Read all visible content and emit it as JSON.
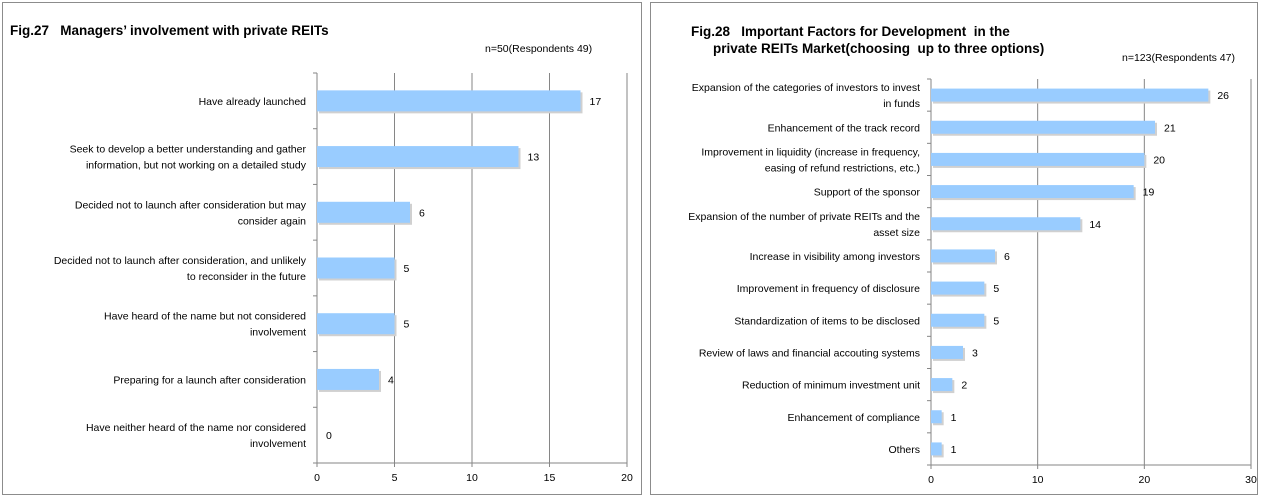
{
  "chart_data": [
    {
      "type": "bar",
      "orientation": "horizontal",
      "title": "Fig.27   Managers’ involvement with private REITs",
      "note": "n=50(Respondents 49)",
      "categories": [
        [
          "Have already launched"
        ],
        [
          "Seek to develop a better understanding and gather",
          "information, but not working on a detailed study"
        ],
        [
          "Decided not to launch after consideration but may",
          "consider again"
        ],
        [
          "Decided not to launch after consideration, and unlikely",
          "to reconsider in the future"
        ],
        [
          "Have heard of the name but not considered",
          "involvement"
        ],
        [
          "Preparing for a launch after consideration"
        ],
        [
          "Have neither heard of the name nor considered",
          "involvement"
        ]
      ],
      "values": [
        17,
        13,
        6,
        5,
        5,
        4,
        0
      ],
      "xlim": [
        0,
        20
      ],
      "xticks": [
        0,
        5,
        10,
        15,
        20
      ],
      "grid": true,
      "bar_color": "#99ccff"
    },
    {
      "type": "bar",
      "orientation": "horizontal",
      "title_lines": [
        "Fig.28   Important Factors for Development  in the",
        "private REITs Market(choosing  up to three options)"
      ],
      "note": "n=123(Respondents 47)",
      "categories": [
        [
          "Expansion of the categories of investors to invest",
          "in funds"
        ],
        [
          "Enhancement of the track record"
        ],
        [
          "Improvement in liquidity (increase in frequency,",
          "easing of refund restrictions, etc.)"
        ],
        [
          "Support of the sponsor"
        ],
        [
          "Expansion of the number of private REITs and the",
          "asset size"
        ],
        [
          "Increase in visibility among investors"
        ],
        [
          "Improvement in frequency of disclosure"
        ],
        [
          "Standardization of items to be disclosed"
        ],
        [
          "Review of laws and financial accouting systems"
        ],
        [
          "Reduction of minimum investment unit"
        ],
        [
          "Enhancement of compliance"
        ],
        [
          "Others"
        ]
      ],
      "values": [
        26,
        21,
        20,
        19,
        14,
        6,
        5,
        5,
        3,
        2,
        1,
        1
      ],
      "xlim": [
        0,
        30
      ],
      "xticks": [
        0,
        10,
        20,
        30
      ],
      "grid": true,
      "bar_color": "#99ccff"
    }
  ]
}
